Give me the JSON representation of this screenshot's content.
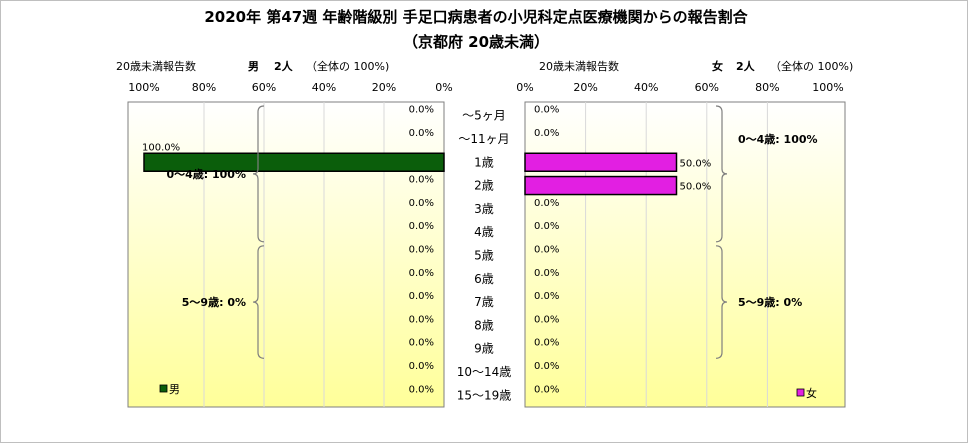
{
  "chart_data": {
    "type": "bar",
    "title_line1": "2020年 第47週 年齢階級別 手足口病患者の小児科定点医療機関からの報告割合",
    "title_line2": "（京都府 20歳未満）",
    "categories": [
      "～5ヶ月",
      "～11ヶ月",
      "1歳",
      "2歳",
      "3歳",
      "4歳",
      "5歳",
      "6歳",
      "7歳",
      "8歳",
      "9歳",
      "10～14歳",
      "15～19歳"
    ],
    "axis_ticks": [
      "100%",
      "80%",
      "60%",
      "40%",
      "20%",
      "0%"
    ],
    "axis_ticks_right": [
      "0%",
      "20%",
      "40%",
      "60%",
      "80%",
      "100%"
    ],
    "xlim": [
      0,
      100
    ],
    "series": [
      {
        "name": "男",
        "side": "left",
        "color": "#0b5e0b",
        "header_label": "20歳未満報告数",
        "header_sex": "男",
        "header_count": "2人",
        "header_note": "（全体の 100%)",
        "values": [
          0,
          0,
          100,
          0,
          0,
          0,
          0,
          0,
          0,
          0,
          0,
          0,
          0
        ],
        "labels": [
          "0.0%",
          "0.0%",
          "100.0%",
          "0.0%",
          "0.0%",
          "0.0%",
          "0.0%",
          "0.0%",
          "0.0%",
          "0.0%",
          "0.0%",
          "0.0%",
          "0.0%"
        ],
        "groups": [
          {
            "label": "0～4歳: 100%",
            "from": 0,
            "to": 5
          },
          {
            "label": "5～9歳: 0%",
            "from": 6,
            "to": 10
          }
        ],
        "legend": "男"
      },
      {
        "name": "女",
        "side": "right",
        "color": "#e21fe2",
        "header_label": "20歳未満報告数",
        "header_sex": "女",
        "header_count": "2人",
        "header_note": "（全体の 100%)",
        "values": [
          0,
          0,
          50,
          50,
          0,
          0,
          0,
          0,
          0,
          0,
          0,
          0,
          0
        ],
        "labels": [
          "0.0%",
          "0.0%",
          "50.0%",
          "50.0%",
          "0.0%",
          "0.0%",
          "0.0%",
          "0.0%",
          "0.0%",
          "0.0%",
          "0.0%",
          "0.0%",
          "0.0%"
        ],
        "groups": [
          {
            "label": "0～4歳: 100%",
            "from": 0,
            "to": 5
          },
          {
            "label": "5～9歳: 0%",
            "from": 6,
            "to": 10
          }
        ],
        "legend": "女"
      }
    ],
    "background_gradient": [
      "#ffffff",
      "#ffff99"
    ],
    "grid": true
  }
}
